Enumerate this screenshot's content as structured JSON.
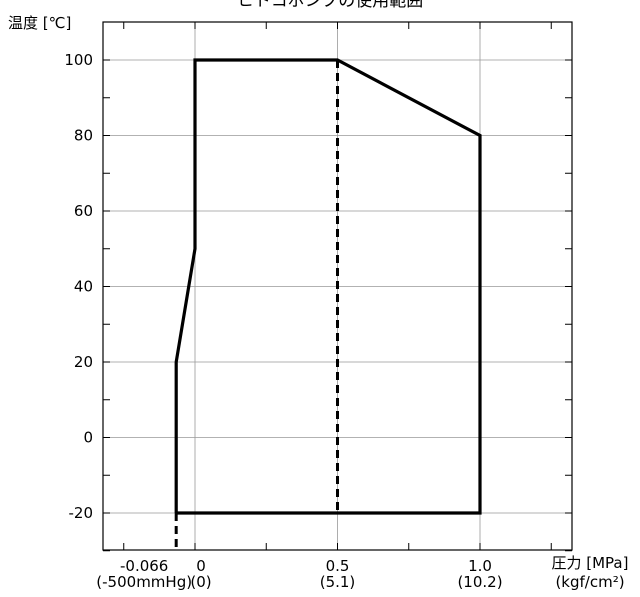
{
  "chart_data": {
    "type": "line",
    "title": "ヒトコポンプの使用範囲",
    "ylabel": "温度 [℃]",
    "xlabel": "圧力 [MPa]",
    "xlabel_sub": "(kgf/cm²)",
    "ylim": [
      -30,
      106
    ],
    "xlim": [
      -0.17,
      1.35
    ],
    "grid": true,
    "yticks": [
      -20,
      0,
      20,
      40,
      60,
      80,
      100
    ],
    "ytick_labels": [
      "-20",
      "0",
      "20",
      "40",
      "60",
      "80",
      "100"
    ],
    "xticks": [
      {
        "value": -0.066,
        "label": "-0.066",
        "sublabel": "(-500mmHg)"
      },
      {
        "value": 0,
        "label": "0",
        "sublabel": "(0)"
      },
      {
        "value": 0.5,
        "label": "0.5",
        "sublabel": "(5.1)"
      },
      {
        "value": 1.0,
        "label": "1.0",
        "sublabel": "(10.2)"
      }
    ],
    "series": [
      {
        "style": "solid",
        "x": [
          -0.066,
          -0.066,
          0,
          0,
          0.5,
          1.0,
          1.0,
          -0.066
        ],
        "y": [
          -20,
          20,
          50,
          100,
          100,
          80,
          -20,
          -20
        ]
      }
    ],
    "dashed_lines": [
      {
        "x": [
          0.5,
          0.5
        ],
        "y": [
          100,
          -20
        ]
      },
      {
        "x": [
          -0.066,
          -0.066
        ],
        "y": [
          -20,
          -30
        ]
      }
    ]
  }
}
